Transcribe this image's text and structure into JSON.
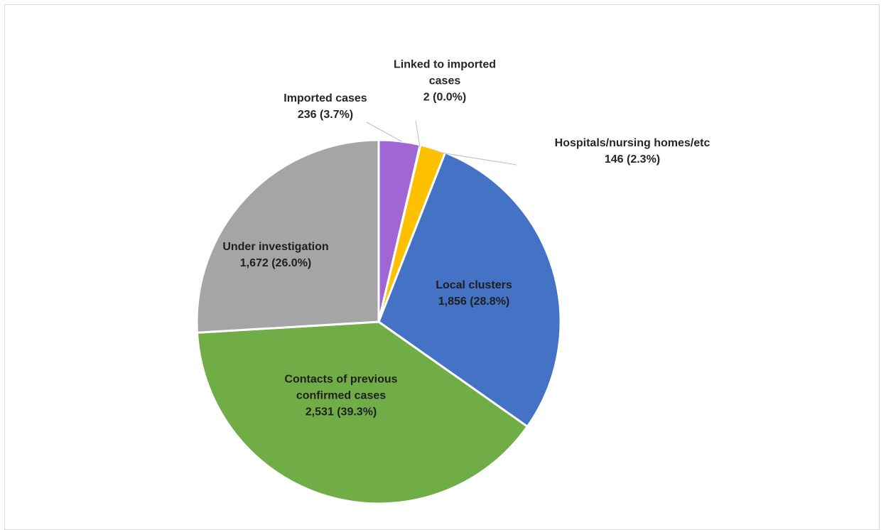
{
  "chart_data": {
    "type": "pie",
    "start_angle_deg": 0,
    "direction": "clockwise",
    "slices": [
      {
        "name": "Imported cases",
        "value": 236,
        "percent": "3.7%",
        "value_label": "236",
        "lines": [
          "Imported cases",
          "236  (3.7%)"
        ],
        "color": "#a066d3",
        "label_placement": "outside"
      },
      {
        "name": "Linked to imported cases",
        "value": 2,
        "percent": "0.0%",
        "value_label": "2",
        "lines": [
          "Linked to imported",
          "cases",
          "2  (0.0%)"
        ],
        "color": "#ffffff",
        "label_placement": "outside"
      },
      {
        "name": "Hospitals/nursing homes/etc",
        "value": 146,
        "percent": "2.3%",
        "value_label": "146",
        "lines": [
          "Hospitals/nursing homes/etc",
          "146  (2.3%)"
        ],
        "color": "#ffc000",
        "label_placement": "outside"
      },
      {
        "name": "Local clusters",
        "value": 1856,
        "percent": "28.8%",
        "value_label": "1,856",
        "lines": [
          "Local clusters",
          "1,856  (28.8%)"
        ],
        "color": "#4472c4",
        "label_placement": "inside"
      },
      {
        "name": "Contacts of previous confirmed cases",
        "value": 2531,
        "percent": "39.3%",
        "value_label": "2,531",
        "lines": [
          "Contacts of previous",
          "confirmed cases",
          "2,531  (39.3%)"
        ],
        "color": "#70ad47",
        "label_placement": "inside"
      },
      {
        "name": "Under investigation",
        "value": 1672,
        "percent": "26.0%",
        "value_label": "1,672",
        "lines": [
          "Under investigation",
          "1,672  (26.0%)"
        ],
        "color": "#a5a5a5",
        "label_placement": "inside"
      }
    ]
  }
}
